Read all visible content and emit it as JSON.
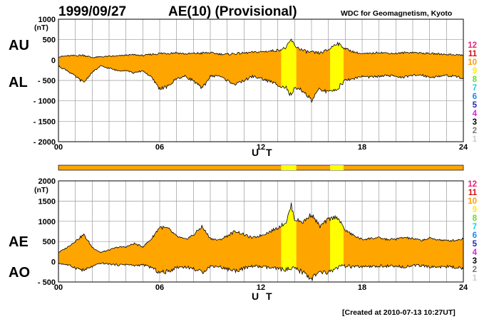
{
  "header": {
    "date": "1999/09/27",
    "title": "AE(10) (Provisional)",
    "organization": "WDC for Geomagnetism, Kyoto"
  },
  "footer": {
    "created": "[Created at 2010-07-13 10:27UT]"
  },
  "colors": {
    "fill_main": "#ffa500",
    "fill_alt": "#ffff00",
    "frame": "#000000",
    "grid": "#9a9a9a"
  },
  "chart_data": [
    {
      "type": "area",
      "panel": "AU/AL",
      "unit": "(nT)",
      "series_labels": [
        "AU",
        "AL"
      ],
      "xlabel": "U T",
      "xlim": [
        0,
        24
      ],
      "x_ticks": [
        "00",
        "06",
        "12",
        "18",
        "24"
      ],
      "ylim": [
        -2000,
        1000
      ],
      "y_ticks": [
        "1000",
        "500",
        "0",
        "- 500",
        "- 1000",
        "- 1500",
        "- 2000"
      ],
      "grid": true,
      "station_count_highlight": [
        {
          "from": 13.2,
          "to": 14.1,
          "color": "#ffff00"
        },
        {
          "from": 16.1,
          "to": 16.9,
          "color": "#ffff00"
        }
      ],
      "x": [
        0,
        0.5,
        1.0,
        1.5,
        2.0,
        2.5,
        3.0,
        3.5,
        4.0,
        4.5,
        5.0,
        5.5,
        6.0,
        6.5,
        7.0,
        7.5,
        8.0,
        8.5,
        9.0,
        9.5,
        10.0,
        10.5,
        11.0,
        11.5,
        12.0,
        12.5,
        13.0,
        13.5,
        13.8,
        14.0,
        14.5,
        15.0,
        15.5,
        16.0,
        16.5,
        17.0,
        17.5,
        18.0,
        18.5,
        19.0,
        19.5,
        20.0,
        20.5,
        21.0,
        21.5,
        22.0,
        22.5,
        23.0,
        23.5,
        24.0
      ],
      "series": [
        {
          "name": "AU",
          "values": [
            80,
            100,
            110,
            120,
            60,
            80,
            90,
            100,
            120,
            130,
            110,
            140,
            160,
            170,
            180,
            150,
            160,
            170,
            180,
            150,
            140,
            160,
            170,
            190,
            200,
            220,
            240,
            300,
            500,
            350,
            230,
            180,
            170,
            250,
            420,
            280,
            200,
            150,
            160,
            190,
            170,
            160,
            180,
            190,
            170,
            160,
            150,
            140,
            130,
            120
          ]
        },
        {
          "name": "AL",
          "values": [
            -150,
            -250,
            -400,
            -550,
            -300,
            -150,
            -200,
            -260,
            -250,
            -320,
            -260,
            -420,
            -700,
            -650,
            -450,
            -400,
            -500,
            -700,
            -400,
            -380,
            -500,
            -600,
            -500,
            -400,
            -450,
            -520,
            -600,
            -680,
            -900,
            -700,
            -750,
            -1000,
            -700,
            -800,
            -700,
            -500,
            -450,
            -400,
            -420,
            -400,
            -380,
            -400,
            -420,
            -380,
            -360,
            -420,
            -400,
            -380,
            -400,
            -450
          ]
        }
      ]
    },
    {
      "type": "area",
      "panel": "AE/AO",
      "unit": "(nT)",
      "series_labels": [
        "AE",
        "AO"
      ],
      "xlabel": "U T",
      "xlim": [
        0,
        24
      ],
      "x_ticks": [
        "00",
        "06",
        "12",
        "18",
        "24"
      ],
      "ylim": [
        -500,
        2000
      ],
      "y_ticks": [
        "2000",
        "1500",
        "1000",
        "500",
        "0",
        "- 500"
      ],
      "grid": true,
      "x": [
        0,
        0.5,
        1.0,
        1.5,
        2.0,
        2.5,
        3.0,
        3.5,
        4.0,
        4.5,
        5.0,
        5.5,
        6.0,
        6.5,
        7.0,
        7.5,
        8.0,
        8.5,
        9.0,
        9.5,
        10.0,
        10.5,
        11.0,
        11.5,
        12.0,
        12.5,
        13.0,
        13.5,
        13.8,
        14.0,
        14.5,
        15.0,
        15.5,
        16.0,
        16.5,
        17.0,
        17.5,
        18.0,
        18.5,
        19.0,
        19.5,
        20.0,
        20.5,
        21.0,
        21.5,
        22.0,
        22.5,
        23.0,
        23.5,
        24.0
      ],
      "series": [
        {
          "name": "AE",
          "values": [
            230,
            350,
            510,
            670,
            360,
            230,
            290,
            360,
            370,
            450,
            370,
            560,
            860,
            820,
            630,
            550,
            660,
            870,
            580,
            530,
            640,
            760,
            670,
            590,
            650,
            740,
            840,
            980,
            1400,
            1050,
            980,
            1180,
            870,
            1050,
            1120,
            780,
            650,
            550,
            580,
            590,
            550,
            560,
            600,
            570,
            530,
            580,
            550,
            520,
            530,
            570
          ]
        },
        {
          "name": "AO",
          "values": [
            -35,
            -75,
            -145,
            -215,
            -120,
            -35,
            -55,
            -80,
            -65,
            -95,
            -75,
            -140,
            -270,
            -240,
            -135,
            -125,
            -170,
            -265,
            -110,
            -115,
            -180,
            -220,
            -165,
            -105,
            -125,
            -150,
            -180,
            -190,
            -200,
            -175,
            -260,
            -410,
            -265,
            -275,
            -140,
            -110,
            -125,
            -125,
            -130,
            -105,
            -105,
            -120,
            -120,
            -95,
            -95,
            -130,
            -125,
            -120,
            -135,
            -165
          ]
        }
      ]
    }
  ],
  "station_bar": {
    "color": "#ffa500",
    "highlights": [
      {
        "from": 13.2,
        "to": 14.1,
        "color": "#ffff00"
      },
      {
        "from": 16.1,
        "to": 16.9,
        "color": "#ffff00"
      }
    ]
  },
  "station_legend": [
    {
      "label": "12",
      "color": "#e8207a"
    },
    {
      "label": "11",
      "color": "#d41010"
    },
    {
      "label": "10",
      "color": "#ff9900"
    },
    {
      "label": "9",
      "color": "#ffee00"
    },
    {
      "label": "8",
      "color": "#66dd22"
    },
    {
      "label": "7",
      "color": "#22ccdd"
    },
    {
      "label": "6",
      "color": "#1188ff"
    },
    {
      "label": "5",
      "color": "#2222bb"
    },
    {
      "label": "4",
      "color": "#dd22dd"
    },
    {
      "label": "3",
      "color": "#000000"
    },
    {
      "label": "2",
      "color": "#777777"
    },
    {
      "label": "1",
      "color": "#cccccc"
    }
  ]
}
